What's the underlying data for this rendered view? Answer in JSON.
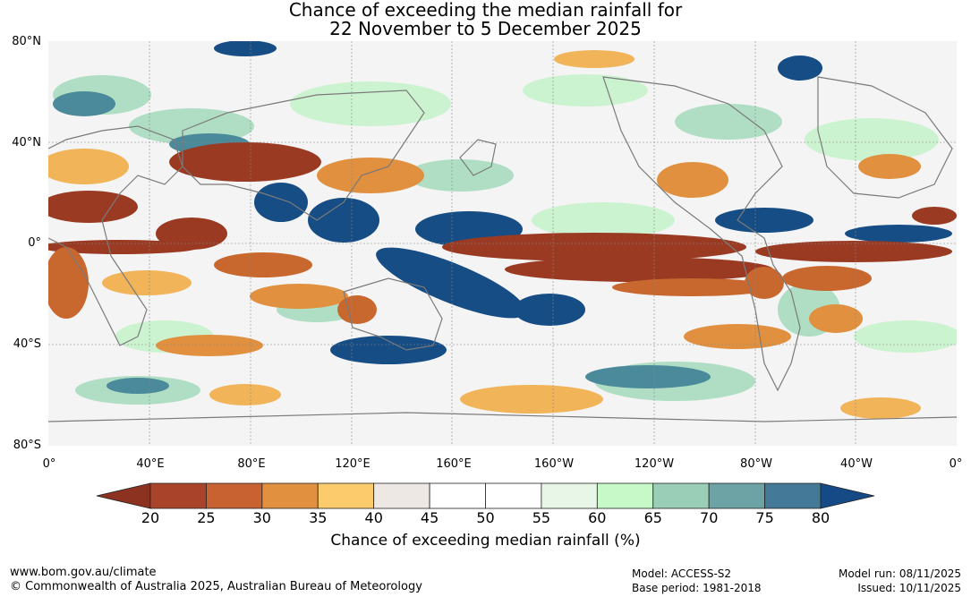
{
  "title": {
    "line1": "Chance of exceeding the median rainfall for",
    "line2": "22 November to 5 December 2025"
  },
  "axes": {
    "lat_labels": [
      "80°N",
      "40°N",
      "0°",
      "40°S",
      "80°S"
    ],
    "lon_labels": [
      "0°",
      "40°E",
      "80°E",
      "120°E",
      "160°E",
      "160°W",
      "120°W",
      "80°W",
      "40°W",
      "0°"
    ]
  },
  "legend": {
    "title": "Chance of exceeding median rainfall (%)",
    "ticks": [
      "20",
      "25",
      "30",
      "35",
      "40",
      "45",
      "50",
      "55",
      "60",
      "65",
      "70",
      "75",
      "80"
    ],
    "low_extend_color": "#8d3220",
    "high_extend_color": "#164a86",
    "colors": [
      "#a9442b",
      "#c86231",
      "#e0903f",
      "#fccb6b",
      "#ede8e4",
      "#ffffff",
      "#ffffff",
      "#e7f6e7",
      "#c6f9c7",
      "#9bceb6",
      "#6da3a4",
      "#447a98"
    ]
  },
  "footer": {
    "website": "www.bom.gov.au/climate",
    "copyright": "© Commonwealth of Australia 2025, Australian Bureau of Meteorology",
    "model": "Model: ACCESS-S2",
    "base_period": "Base period: 1981-2018",
    "model_run": "Model run: 08/11/2025",
    "issued": "Issued: 10/11/2025"
  },
  "map_colors": {
    "ocean": "#f4f4f4",
    "land_outline": "#7a7a7a",
    "dry_strong": "#9a3a22",
    "dry": "#c8682f",
    "dry_light": "#f1b458",
    "wet_strong": "#174d85",
    "wet": "#4b8a9a",
    "wet_light": "#a9dcbf",
    "green_light": "#c8f3cc"
  }
}
